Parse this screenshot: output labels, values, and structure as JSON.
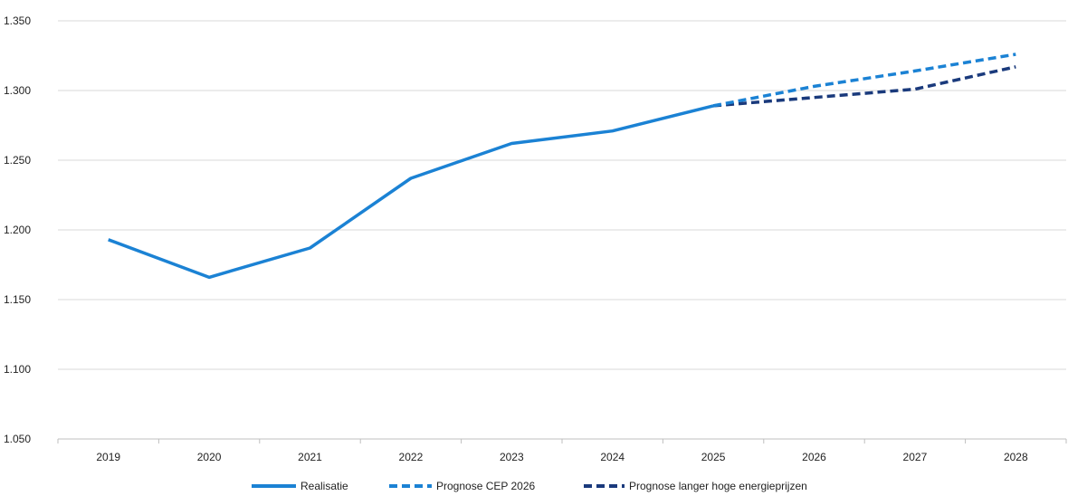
{
  "chart_data": {
    "type": "line",
    "categories": [
      "2019",
      "2020",
      "2021",
      "2022",
      "2023",
      "2024",
      "2025",
      "2026",
      "2027",
      "2028"
    ],
    "ylim": [
      1050,
      1350
    ],
    "yticks": [
      1050,
      1100,
      1150,
      1200,
      1250,
      1300,
      1350
    ],
    "ytick_labels": [
      "1.050",
      "1.100",
      "1.150",
      "1.200",
      "1.250",
      "1.300",
      "1.350"
    ],
    "grid": "horizontal",
    "legend_position": "bottom",
    "series": [
      {
        "name": "Realisatie",
        "style": "solid",
        "color": "#1b82d4",
        "values": [
          1193,
          1166,
          1187,
          1237,
          1262,
          1271,
          1289,
          null,
          null,
          null
        ]
      },
      {
        "name": "Prognose CEP 2026",
        "style": "dashed",
        "color": "#1b82d4",
        "values": [
          null,
          null,
          null,
          null,
          null,
          null,
          1289,
          1303,
          1314,
          1326
        ]
      },
      {
        "name": "Prognose langer hoge energieprijzen",
        "style": "dashed",
        "color": "#1a3a7c",
        "values": [
          null,
          null,
          null,
          null,
          null,
          null,
          1289,
          1295,
          1301,
          1317
        ]
      }
    ]
  }
}
